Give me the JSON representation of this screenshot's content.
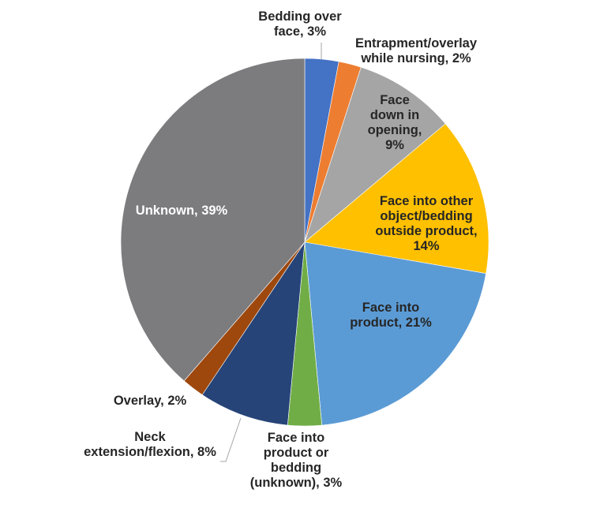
{
  "chart_data": {
    "type": "pie",
    "title": "",
    "start_angle_deg": 0,
    "direction": "clockwise",
    "slices": [
      {
        "label": "Bedding over face",
        "value": 3,
        "display": "Bedding over\nface, 3%",
        "color": "#4472C4"
      },
      {
        "label": "Entrapment/overlay while nursing",
        "value": 2,
        "display": "Entrapment/overlay\nwhile nursing, 2%",
        "color": "#ED7D31"
      },
      {
        "label": "Face down in opening",
        "value": 9,
        "display": "Face\ndown in\nopening,\n9%",
        "color": "#A5A5A5"
      },
      {
        "label": "Face into other object/bedding outside product",
        "value": 14,
        "display": "Face into other\nobject/bedding\noutside product,\n14%",
        "color": "#FFC000"
      },
      {
        "label": "Face into product",
        "value": 21,
        "display": "Face into\nproduct, 21%",
        "color": "#5B9BD5"
      },
      {
        "label": "Face into product or bedding (unknown)",
        "value": 3,
        "display": "Face into\nproduct or\nbedding\n(unknown), 3%",
        "color": "#70AD47"
      },
      {
        "label": "Neck extension/flexion",
        "value": 8,
        "display": "Neck\nextension/flexion, 8%",
        "color": "#264478"
      },
      {
        "label": "Overlay",
        "value": 2,
        "display": "Overlay, 2%",
        "color": "#9E480E"
      },
      {
        "label": "Unknown",
        "value": 39,
        "display": "Unknown, 39%",
        "color": "#7C7C7F"
      }
    ],
    "legend": "none (data labels)",
    "unit": "%"
  },
  "labels": {
    "bedding": "Bedding over\nface, 3%",
    "entrapment": "Entrapment/overlay\nwhile nursing, 2%",
    "face_down": "Face\ndown in\nopening,\n9%",
    "face_other": "Face into other\nobject/bedding\noutside product,\n14%",
    "face_product": "Face into\nproduct, 21%",
    "face_unknown": "Face into\nproduct or\nbedding\n(unknown), 3%",
    "neck": "Neck\nextension/flexion, 8%",
    "overlay": "Overlay, 2%",
    "unknown": "Unknown, 39%"
  }
}
